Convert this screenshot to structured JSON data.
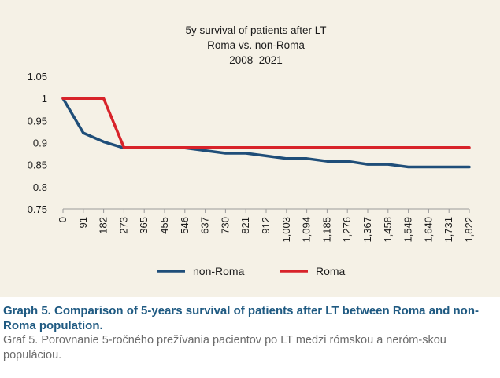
{
  "chart_data": {
    "type": "line",
    "title": [
      "5y survival of patients after LT",
      "Roma vs. non-Roma",
      "2008–2021"
    ],
    "xlabel": "",
    "ylabel": "",
    "x": [
      "0",
      "91",
      "182",
      "273",
      "365",
      "455",
      "546",
      "637",
      "730",
      "821",
      "912",
      "1,003",
      "1,094",
      "1,185",
      "1,276",
      "1,367",
      "1,458",
      "1,549",
      "1,640",
      "1,731",
      "1,822"
    ],
    "y_ticks": [
      "1.05",
      "1",
      "0.95",
      "0.9",
      "0.85",
      "0.8",
      "0.75"
    ],
    "ylim": [
      0.75,
      1.05
    ],
    "grid": false,
    "legend_position": "bottom",
    "series": [
      {
        "name": "non-Roma",
        "color": "#1f4e79",
        "values": [
          1,
          0.922,
          0.902,
          0.888,
          0.888,
          0.888,
          0.888,
          0.882,
          0.876,
          0.876,
          0.87,
          0.864,
          0.864,
          0.858,
          0.858,
          0.851,
          0.851,
          0.845,
          0.845,
          0.845,
          0.845
        ]
      },
      {
        "name": "Roma",
        "color": "#d8232a",
        "values": [
          1,
          1,
          1,
          0.889,
          0.889,
          0.889,
          0.889,
          0.889,
          0.889,
          0.889,
          0.889,
          0.889,
          0.889,
          0.889,
          0.889,
          0.889,
          0.889,
          0.889,
          0.889,
          0.889,
          0.889
        ]
      }
    ]
  },
  "caption": {
    "english": "Graph 5. Comparison of 5-years survival of patients after LT between Roma and non-Roma population.",
    "slovak": "Graf 5. Porovnanie 5-ročného prežívania pacientov po LT medzi rómskou a neróm-skou populáciou."
  }
}
